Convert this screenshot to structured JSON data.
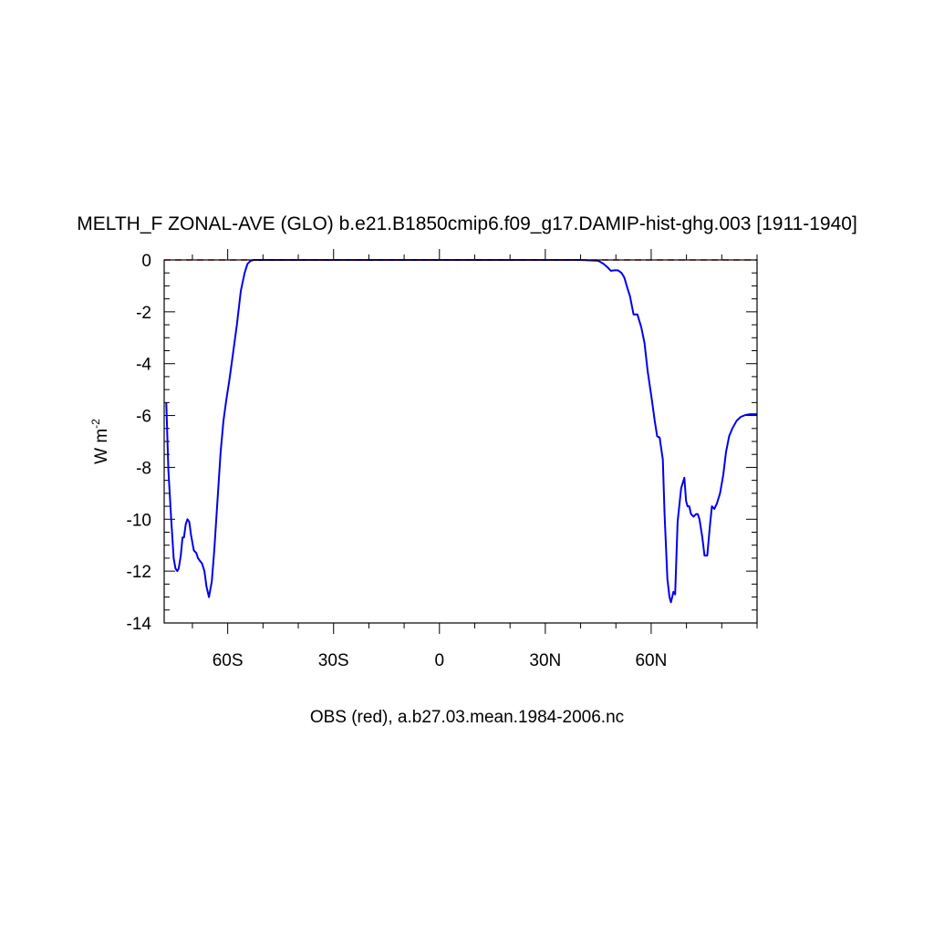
{
  "chart_data": {
    "type": "line",
    "title": "MELTH_F ZONAL-AVE (GLO) b.e21.B1850cmip6.f09_g17.DAMIP-hist-ghg.003 [1911-1940]",
    "xlabel": "",
    "ylabel": "W m",
    "ylabel_superscript": "-2",
    "caption": "OBS (red), a.b27.03.mean.1984-2006.nc",
    "xlim": [
      -78,
      90
    ],
    "ylim": [
      -14,
      0
    ],
    "x_ticks": [
      {
        "value": -60,
        "label": "60S"
      },
      {
        "value": -30,
        "label": "30S"
      },
      {
        "value": 0,
        "label": "0"
      },
      {
        "value": 30,
        "label": "30N"
      },
      {
        "value": 60,
        "label": "60N"
      }
    ],
    "y_ticks": [
      {
        "value": 0,
        "label": "0"
      },
      {
        "value": -2,
        "label": "-2"
      },
      {
        "value": -4,
        "label": "-4"
      },
      {
        "value": -6,
        "label": "-6"
      },
      {
        "value": -8,
        "label": "-8"
      },
      {
        "value": -10,
        "label": "-10"
      },
      {
        "value": -12,
        "label": "-12"
      },
      {
        "value": -14,
        "label": "-14"
      }
    ],
    "grid": false,
    "series": [
      {
        "color": "#0000ee",
        "style": "solid",
        "x": [
          -77.4,
          -76.8,
          -76.0,
          -75.3,
          -74.8,
          -74.3,
          -73.9,
          -73.3,
          -72.8,
          -72.4,
          -71.9,
          -71.4,
          -70.9,
          -70.4,
          -69.6,
          -68.9,
          -68.4,
          -67.9,
          -67.3,
          -66.6,
          -66.0,
          -65.3,
          -64.5,
          -63.8,
          -62.9,
          -62.0,
          -61.2,
          -60.4,
          -59.5,
          -58.6,
          -57.4,
          -56.3,
          -55.2,
          -54.4,
          -53.5,
          -52.6,
          -51.5,
          -50.5,
          -45,
          0,
          40,
          45,
          46.5,
          47.6,
          48.6,
          49.5,
          50.6,
          51.6,
          52.4,
          53.3,
          54.0,
          55.0,
          56.1,
          57.2,
          58.1,
          59.0,
          60.2,
          61.0,
          61.7,
          62.4,
          63.3,
          63.8,
          64.6,
          65.2,
          65.6,
          66.3,
          66.8,
          67.5,
          68.5,
          69.4,
          69.9,
          70.3,
          70.8,
          71.3,
          72.0,
          72.7,
          73.2,
          73.7,
          74.5,
          75.1,
          75.9,
          76.6,
          77.2,
          77.9,
          78.6,
          79.5,
          80.4,
          81.2,
          82.1,
          83.0,
          84.2,
          85.4,
          86.7,
          88.0,
          90.0
        ],
        "y": [
          -5.5,
          -8.1,
          -10.0,
          -11.5,
          -11.9,
          -12.0,
          -11.9,
          -11.4,
          -10.7,
          -10.7,
          -10.2,
          -10.0,
          -10.1,
          -10.6,
          -11.2,
          -11.3,
          -11.5,
          -11.6,
          -11.7,
          -12.0,
          -12.6,
          -13.0,
          -12.4,
          -11.2,
          -9.3,
          -7.4,
          -6.2,
          -5.4,
          -4.6,
          -3.7,
          -2.5,
          -1.2,
          -0.5,
          -0.15,
          -0.03,
          0,
          0,
          0,
          0,
          0,
          0,
          -0.03,
          -0.15,
          -0.28,
          -0.42,
          -0.4,
          -0.4,
          -0.5,
          -0.68,
          -1.1,
          -1.4,
          -2.1,
          -2.1,
          -2.6,
          -3.2,
          -4.3,
          -5.4,
          -6.2,
          -6.8,
          -6.85,
          -7.7,
          -9.8,
          -12.3,
          -13.0,
          -13.2,
          -12.8,
          -12.9,
          -10.1,
          -8.8,
          -8.4,
          -9.3,
          -9.5,
          -9.5,
          -9.8,
          -9.9,
          -9.8,
          -9.8,
          -10.0,
          -10.7,
          -11.4,
          -11.4,
          -10.3,
          -9.5,
          -9.6,
          -9.4,
          -9.0,
          -8.3,
          -7.4,
          -6.8,
          -6.5,
          -6.2,
          -6.05,
          -5.98,
          -5.95,
          -5.95
        ]
      },
      {
        "color": "#cc0000",
        "style": "dashed",
        "x": [
          -78,
          90
        ],
        "y": [
          0,
          0
        ]
      }
    ]
  }
}
